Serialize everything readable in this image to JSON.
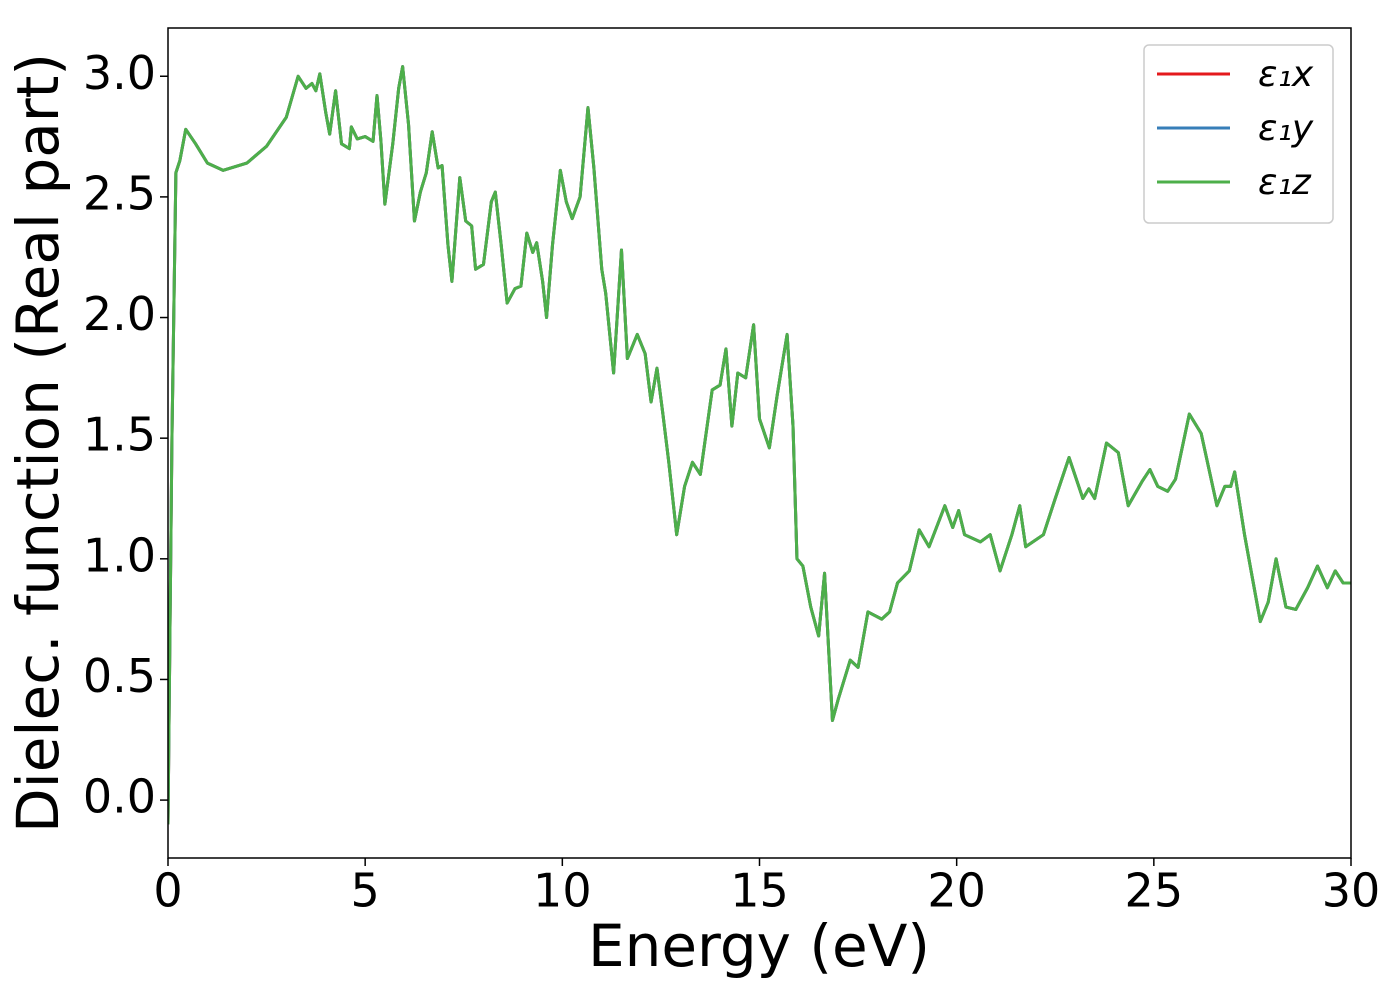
{
  "chart_data": {
    "type": "line",
    "xlabel": "Energy (eV)",
    "ylabel": "Dielec. function (Real part)",
    "x": [
      0,
      0.1,
      0.2,
      0.3,
      0.45,
      0.7,
      1.0,
      1.4,
      2.0,
      2.5,
      3.0,
      3.3,
      3.5,
      3.65,
      3.75,
      3.85,
      4.0,
      4.1,
      4.25,
      4.4,
      4.6,
      4.65,
      4.8,
      5.0,
      5.2,
      5.3,
      5.4,
      5.5,
      5.7,
      5.85,
      5.95,
      6.1,
      6.25,
      6.4,
      6.55,
      6.7,
      6.85,
      6.95,
      7.1,
      7.2,
      7.4,
      7.55,
      7.7,
      7.8,
      8.0,
      8.2,
      8.3,
      8.45,
      8.6,
      8.8,
      8.95,
      9.1,
      9.25,
      9.35,
      9.5,
      9.6,
      9.75,
      9.95,
      10.1,
      10.25,
      10.45,
      10.65,
      10.8,
      11.0,
      11.1,
      11.3,
      11.5,
      11.65,
      11.9,
      12.1,
      12.25,
      12.4,
      12.55,
      12.7,
      12.9,
      13.1,
      13.3,
      13.5,
      13.8,
      14.0,
      14.15,
      14.3,
      14.45,
      14.65,
      14.85,
      15.0,
      15.25,
      15.45,
      15.7,
      15.85,
      15.95,
      16.1,
      16.3,
      16.5,
      16.65,
      16.85,
      17.0,
      17.3,
      17.5,
      17.75,
      18.1,
      18.3,
      18.5,
      18.8,
      19.05,
      19.3,
      19.7,
      19.9,
      20.05,
      20.2,
      20.6,
      20.85,
      21.1,
      21.4,
      21.6,
      21.75,
      22.2,
      22.5,
      22.85,
      23.2,
      23.35,
      23.5,
      23.8,
      24.1,
      24.35,
      24.7,
      24.9,
      25.1,
      25.35,
      25.55,
      25.9,
      26.2,
      26.6,
      26.8,
      26.95,
      27.05,
      27.3,
      27.7,
      27.9,
      28.1,
      28.35,
      28.6,
      28.9,
      29.15,
      29.4,
      29.6,
      29.8,
      30.0
    ],
    "series": [
      {
        "name": "ε₁x",
        "color": "#e41a1c",
        "values": [
          -0.1,
          1.5,
          2.6,
          2.65,
          2.78,
          2.72,
          2.64,
          2.61,
          2.64,
          2.71,
          2.83,
          3.0,
          2.95,
          2.97,
          2.94,
          3.01,
          2.85,
          2.76,
          2.94,
          2.72,
          2.7,
          2.79,
          2.74,
          2.75,
          2.73,
          2.92,
          2.73,
          2.47,
          2.72,
          2.95,
          3.04,
          2.8,
          2.4,
          2.52,
          2.6,
          2.77,
          2.62,
          2.63,
          2.3,
          2.15,
          2.58,
          2.4,
          2.38,
          2.2,
          2.22,
          2.48,
          2.52,
          2.3,
          2.06,
          2.12,
          2.13,
          2.35,
          2.27,
          2.31,
          2.15,
          2.0,
          2.3,
          2.61,
          2.48,
          2.41,
          2.5,
          2.87,
          2.62,
          2.2,
          2.1,
          1.77,
          2.28,
          1.83,
          1.93,
          1.85,
          1.65,
          1.79,
          1.6,
          1.4,
          1.1,
          1.3,
          1.4,
          1.35,
          1.7,
          1.72,
          1.87,
          1.55,
          1.77,
          1.75,
          1.97,
          1.58,
          1.46,
          1.68,
          1.93,
          1.55,
          1.0,
          0.97,
          0.8,
          0.68,
          0.94,
          0.33,
          0.42,
          0.58,
          0.55,
          0.78,
          0.75,
          0.78,
          0.9,
          0.95,
          1.12,
          1.05,
          1.22,
          1.13,
          1.2,
          1.1,
          1.07,
          1.1,
          0.95,
          1.1,
          1.22,
          1.05,
          1.1,
          1.25,
          1.42,
          1.25,
          1.29,
          1.25,
          1.48,
          1.44,
          1.22,
          1.32,
          1.37,
          1.3,
          1.28,
          1.33,
          1.6,
          1.52,
          1.22,
          1.3,
          1.3,
          1.36,
          1.1,
          0.74,
          0.82,
          1.0,
          0.8,
          0.79,
          0.88,
          0.97,
          0.88,
          0.95,
          0.9,
          0.9
        ]
      },
      {
        "name": "ε₁y",
        "color": "#377eb8",
        "values": [
          -0.1,
          1.5,
          2.6,
          2.65,
          2.78,
          2.72,
          2.64,
          2.61,
          2.64,
          2.71,
          2.83,
          3.0,
          2.95,
          2.97,
          2.94,
          3.01,
          2.85,
          2.76,
          2.94,
          2.72,
          2.7,
          2.79,
          2.74,
          2.75,
          2.73,
          2.92,
          2.73,
          2.47,
          2.72,
          2.95,
          3.04,
          2.8,
          2.4,
          2.52,
          2.6,
          2.77,
          2.62,
          2.63,
          2.3,
          2.15,
          2.58,
          2.4,
          2.38,
          2.2,
          2.22,
          2.48,
          2.52,
          2.3,
          2.06,
          2.12,
          2.13,
          2.35,
          2.27,
          2.31,
          2.15,
          2.0,
          2.3,
          2.61,
          2.48,
          2.41,
          2.5,
          2.87,
          2.62,
          2.2,
          2.1,
          1.77,
          2.28,
          1.83,
          1.93,
          1.85,
          1.65,
          1.79,
          1.6,
          1.4,
          1.1,
          1.3,
          1.4,
          1.35,
          1.7,
          1.72,
          1.87,
          1.55,
          1.77,
          1.75,
          1.97,
          1.58,
          1.46,
          1.68,
          1.93,
          1.55,
          1.0,
          0.97,
          0.8,
          0.68,
          0.94,
          0.33,
          0.42,
          0.58,
          0.55,
          0.78,
          0.75,
          0.78,
          0.9,
          0.95,
          1.12,
          1.05,
          1.22,
          1.13,
          1.2,
          1.1,
          1.07,
          1.1,
          0.95,
          1.1,
          1.22,
          1.05,
          1.1,
          1.25,
          1.42,
          1.25,
          1.29,
          1.25,
          1.48,
          1.44,
          1.22,
          1.32,
          1.37,
          1.3,
          1.28,
          1.33,
          1.6,
          1.52,
          1.22,
          1.3,
          1.3,
          1.36,
          1.1,
          0.74,
          0.82,
          1.0,
          0.8,
          0.79,
          0.88,
          0.97,
          0.88,
          0.95,
          0.9,
          0.9
        ]
      },
      {
        "name": "ε₁z",
        "color": "#4daf4a",
        "values": [
          -0.1,
          1.5,
          2.6,
          2.65,
          2.78,
          2.72,
          2.64,
          2.61,
          2.64,
          2.71,
          2.83,
          3.0,
          2.95,
          2.97,
          2.94,
          3.01,
          2.85,
          2.76,
          2.94,
          2.72,
          2.7,
          2.79,
          2.74,
          2.75,
          2.73,
          2.92,
          2.73,
          2.47,
          2.72,
          2.95,
          3.04,
          2.8,
          2.4,
          2.52,
          2.6,
          2.77,
          2.62,
          2.63,
          2.3,
          2.15,
          2.58,
          2.4,
          2.38,
          2.2,
          2.22,
          2.48,
          2.52,
          2.3,
          2.06,
          2.12,
          2.13,
          2.35,
          2.27,
          2.31,
          2.15,
          2.0,
          2.3,
          2.61,
          2.48,
          2.41,
          2.5,
          2.87,
          2.62,
          2.2,
          2.1,
          1.77,
          2.28,
          1.83,
          1.93,
          1.85,
          1.65,
          1.79,
          1.6,
          1.4,
          1.1,
          1.3,
          1.4,
          1.35,
          1.7,
          1.72,
          1.87,
          1.55,
          1.77,
          1.75,
          1.97,
          1.58,
          1.46,
          1.68,
          1.93,
          1.55,
          1.0,
          0.97,
          0.8,
          0.68,
          0.94,
          0.33,
          0.42,
          0.58,
          0.55,
          0.78,
          0.75,
          0.78,
          0.9,
          0.95,
          1.12,
          1.05,
          1.22,
          1.13,
          1.2,
          1.1,
          1.07,
          1.1,
          0.95,
          1.1,
          1.22,
          1.05,
          1.1,
          1.25,
          1.42,
          1.25,
          1.29,
          1.25,
          1.48,
          1.44,
          1.22,
          1.32,
          1.37,
          1.3,
          1.28,
          1.33,
          1.6,
          1.52,
          1.22,
          1.3,
          1.3,
          1.36,
          1.1,
          0.74,
          0.82,
          1.0,
          0.8,
          0.79,
          0.88,
          0.97,
          0.88,
          0.95,
          0.9,
          0.9
        ]
      }
    ],
    "xlim": [
      0,
      30
    ],
    "xticks": [
      0,
      5,
      10,
      15,
      20,
      25,
      30
    ],
    "ylim": [
      -0.24,
      3.2
    ],
    "yticks": [
      {
        "value": 0,
        "label": "0.0"
      },
      0.5,
      {
        "value": 1,
        "label": "1.0"
      },
      1.5,
      {
        "value": 2,
        "label": "2.0"
      },
      2.5,
      {
        "value": 3,
        "label": "3.0"
      }
    ],
    "legend": "upper right",
    "grid": false
  }
}
